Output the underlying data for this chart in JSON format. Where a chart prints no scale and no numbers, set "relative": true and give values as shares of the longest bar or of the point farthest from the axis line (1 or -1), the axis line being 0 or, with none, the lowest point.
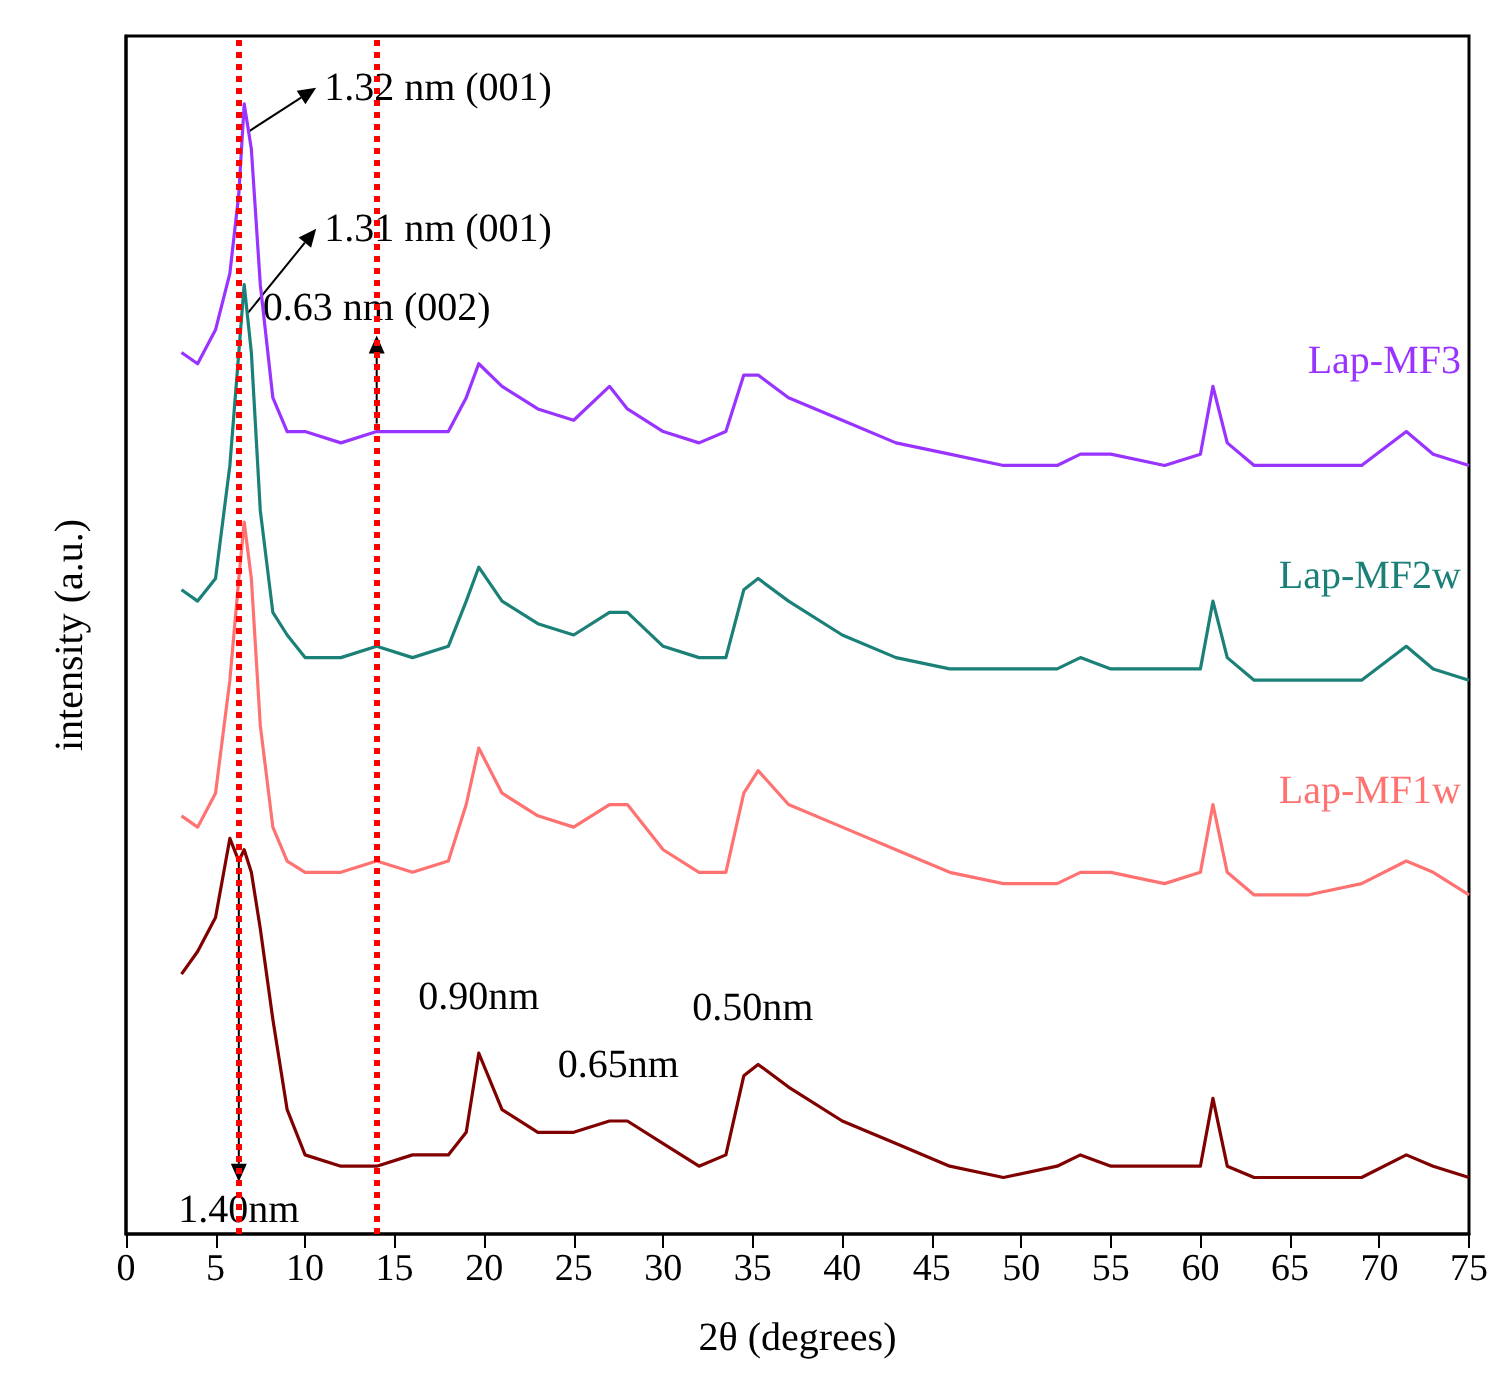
{
  "chart_data": {
    "type": "line",
    "relative": true,
    "xlabel": "2θ (degrees)",
    "ylabel": "intensity (a.u.)",
    "xlim": [
      0,
      75
    ],
    "xticks": [
      0,
      5,
      10,
      15,
      20,
      25,
      30,
      35,
      40,
      45,
      50,
      55,
      60,
      65,
      70,
      75
    ],
    "x": [
      3.1,
      4,
      5,
      5.8,
      6.3,
      6.6,
      7,
      7.5,
      8.2,
      9,
      10,
      12,
      14,
      16,
      18,
      19,
      19.7,
      21,
      23,
      25,
      27,
      28,
      30,
      32,
      33.5,
      34.5,
      35.3,
      37,
      40,
      43,
      46,
      49,
      52,
      53.3,
      55,
      58,
      60,
      60.7,
      61.5,
      63,
      66,
      69,
      71.5,
      73,
      75
    ],
    "legend": false,
    "grid": false,
    "marker": "none",
    "line_style": "solid",
    "series": [
      {
        "name": "Lap-MF3",
        "color": "#9933ff",
        "values": [
          0.78,
          0.77,
          0.8,
          0.85,
          0.92,
          1.0,
          0.96,
          0.84,
          0.74,
          0.71,
          0.71,
          0.7,
          0.71,
          0.71,
          0.71,
          0.74,
          0.77,
          0.75,
          0.73,
          0.72,
          0.75,
          0.73,
          0.71,
          0.7,
          0.71,
          0.76,
          0.76,
          0.74,
          0.72,
          0.7,
          0.69,
          0.68,
          0.68,
          0.69,
          0.69,
          0.68,
          0.69,
          0.75,
          0.7,
          0.68,
          0.68,
          0.68,
          0.71,
          0.69,
          0.68
        ]
      },
      {
        "name": "Lap-MF2w",
        "color": "#1a8078",
        "values": [
          0.57,
          0.56,
          0.58,
          0.68,
          0.78,
          0.84,
          0.78,
          0.64,
          0.55,
          0.53,
          0.51,
          0.51,
          0.52,
          0.51,
          0.52,
          0.56,
          0.59,
          0.56,
          0.54,
          0.53,
          0.55,
          0.55,
          0.52,
          0.51,
          0.51,
          0.57,
          0.58,
          0.56,
          0.53,
          0.51,
          0.5,
          0.5,
          0.5,
          0.51,
          0.5,
          0.5,
          0.5,
          0.56,
          0.51,
          0.49,
          0.49,
          0.49,
          0.52,
          0.5,
          0.49
        ]
      },
      {
        "name": "Lap-MF1w",
        "color": "#ff7272",
        "values": [
          0.37,
          0.36,
          0.39,
          0.49,
          0.58,
          0.63,
          0.58,
          0.45,
          0.36,
          0.33,
          0.32,
          0.32,
          0.33,
          0.32,
          0.33,
          0.38,
          0.43,
          0.39,
          0.37,
          0.36,
          0.38,
          0.38,
          0.34,
          0.32,
          0.32,
          0.39,
          0.41,
          0.38,
          0.36,
          0.34,
          0.32,
          0.31,
          0.31,
          0.32,
          0.32,
          0.31,
          0.32,
          0.38,
          0.32,
          0.3,
          0.3,
          0.31,
          0.33,
          0.32,
          0.3
        ]
      },
      {
        "color": "#800000",
        "values": [
          0.23,
          0.25,
          0.28,
          0.35,
          0.33,
          0.34,
          0.32,
          0.27,
          0.19,
          0.11,
          0.07,
          0.06,
          0.06,
          0.07,
          0.07,
          0.09,
          0.16,
          0.11,
          0.09,
          0.09,
          0.1,
          0.1,
          0.08,
          0.06,
          0.07,
          0.14,
          0.15,
          0.13,
          0.1,
          0.08,
          0.06,
          0.05,
          0.06,
          0.07,
          0.06,
          0.06,
          0.06,
          0.12,
          0.06,
          0.05,
          0.05,
          0.05,
          0.07,
          0.06,
          0.05
        ]
      }
    ],
    "ref_lines": [
      {
        "axis": "x",
        "value": 6.3,
        "color": "#ff0000",
        "line_style": "dotted"
      },
      {
        "axis": "x",
        "value": 14,
        "color": "#ff0000",
        "line_style": "dotted"
      }
    ],
    "annotations": [
      {
        "text": "1.32 nm (001)",
        "x": 6.6,
        "y": 1.0
      },
      {
        "text": "1.31 nm (001)",
        "x": 6.6,
        "y": 0.84
      },
      {
        "text": "0.63 nm (002)",
        "x": 14,
        "y": 0.71
      },
      {
        "text": "1.40nm",
        "x": 6.3,
        "y": 0.34
      },
      {
        "text": "0.90nm",
        "x": 19.7,
        "y": 0.16
      },
      {
        "text": "0.65nm",
        "x": 27.5,
        "y": 0.1
      },
      {
        "text": "0.50nm",
        "x": 35,
        "y": 0.15
      }
    ]
  }
}
